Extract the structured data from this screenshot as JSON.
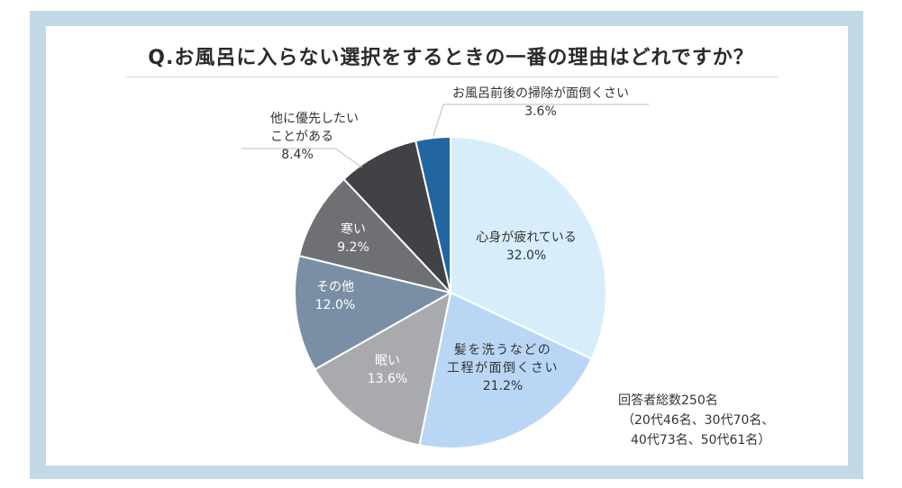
{
  "title": "Q.お風呂に入らない選択をするときの一番の理由はどれですか？",
  "note": {
    "line1": "回答者総数250名",
    "line2": "（20代46名、30代70名、",
    "line3": "40代73名、50代61名）"
  },
  "chart_data": {
    "type": "pie",
    "title": "Q.お風呂に入らない選択をするときの一番の理由はどれですか？",
    "start": "12 o'clock, clockwise",
    "slices": [
      {
        "label_lines": [
          "心身が疲れている"
        ],
        "value_label": "32.0%",
        "value": 32.0,
        "color": "#d7eefa",
        "label_color": "#333333"
      },
      {
        "label_lines": [
          "髪を洗うなどの",
          "工程が面倒くさい"
        ],
        "value_label": "21.2%",
        "value": 21.2,
        "color": "#b9d7f5",
        "label_color": "#333333"
      },
      {
        "label_lines": [
          "眠い"
        ],
        "value_label": "13.6%",
        "value": 13.6,
        "color": "#a9aaae",
        "label_color": "#ffffff"
      },
      {
        "label_lines": [
          "その他"
        ],
        "value_label": "12.0%",
        "value": 12.0,
        "color": "#7a8fa6",
        "label_color": "#ffffff"
      },
      {
        "label_lines": [
          "寒い"
        ],
        "value_label": "9.2%",
        "value": 9.2,
        "color": "#6f7073",
        "label_color": "#ffffff"
      },
      {
        "label_lines": [
          "他に優先したい",
          "ことがある"
        ],
        "value_label": "8.4%",
        "value": 8.4,
        "color": "#404246",
        "label_color": "#333333"
      },
      {
        "label_lines": [
          "お風呂前後の掃除が面倒くさい"
        ],
        "value_label": "3.6%",
        "value": 3.6,
        "color": "#2166a0",
        "label_color": "#333333"
      }
    ]
  }
}
